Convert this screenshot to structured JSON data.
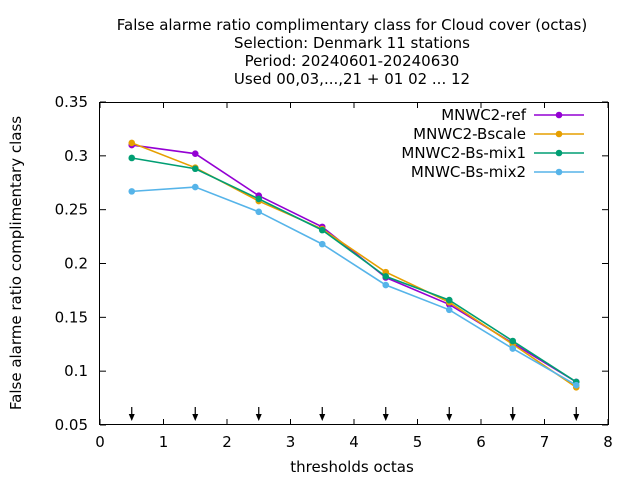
{
  "chart_data": {
    "type": "line",
    "title_lines": [
      "False alarme ratio complimentary class  for Cloud cover (octas)",
      "Selection: Denmark     11 stations",
      "Period: 20240601-20240630",
      "Used 00,03,...,21 + 01 02 ... 12"
    ],
    "xlabel": "thresholds octas",
    "ylabel": "False alarme ratio complimentary class",
    "xlim": [
      0,
      8
    ],
    "ylim": [
      0.05,
      0.35
    ],
    "xticks": [
      "0",
      "1",
      "2",
      "3",
      "4",
      "5",
      "6",
      "7",
      "8"
    ],
    "yticks": [
      "0.05",
      "0.1",
      "0.15",
      "0.2",
      "0.25",
      "0.3",
      "0.35"
    ],
    "grid": false,
    "legend_position": "top-right",
    "x": [
      0.5,
      1.5,
      2.5,
      3.5,
      4.5,
      5.5,
      6.5,
      7.5
    ],
    "arrow_markers_x": [
      0.5,
      1.5,
      2.5,
      3.5,
      4.5,
      5.5,
      6.5,
      7.5
    ],
    "series": [
      {
        "name": "MNWC2-ref",
        "color": "#9400d3",
        "values": [
          0.31,
          0.302,
          0.263,
          0.234,
          0.187,
          0.162,
          0.126,
          0.09
        ]
      },
      {
        "name": "MNWC2-Bscale",
        "color": "#e69f00",
        "values": [
          0.312,
          0.289,
          0.258,
          0.232,
          0.192,
          0.164,
          0.125,
          0.085
        ]
      },
      {
        "name": "MNWC2-Bs-mix1",
        "color": "#009e73",
        "values": [
          0.298,
          0.288,
          0.26,
          0.231,
          0.188,
          0.166,
          0.128,
          0.09
        ]
      },
      {
        "name": "MNWC-Bs-mix2",
        "color": "#56b4e9",
        "values": [
          0.267,
          0.271,
          0.248,
          0.218,
          0.18,
          0.157,
          0.121,
          0.087
        ]
      }
    ]
  }
}
